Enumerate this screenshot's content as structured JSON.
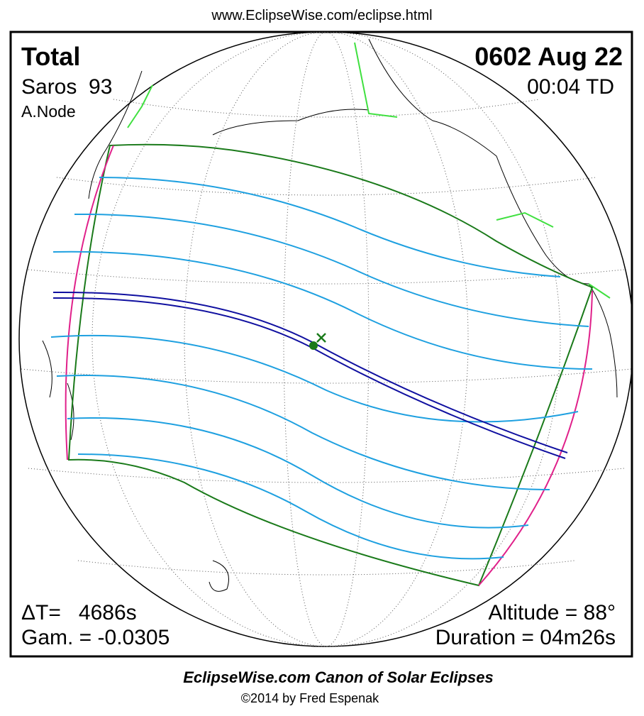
{
  "header": {
    "url": "www.EclipseWise.com/eclipse.html"
  },
  "eclipse": {
    "type": "Total",
    "date": "0602 Aug 22",
    "saros": "Saros  93",
    "node": "A.Node",
    "time": "00:04 TD",
    "delta_t": "ΔT=   4686s",
    "gamma": "Gam. = -0.0305",
    "altitude": "Altitude = 88°",
    "duration": "Duration = 04m26s"
  },
  "footer": {
    "title": "EclipseWise.com Canon of Solar Eclipses",
    "copyright": "©2014 by Fred Espenak"
  }
}
